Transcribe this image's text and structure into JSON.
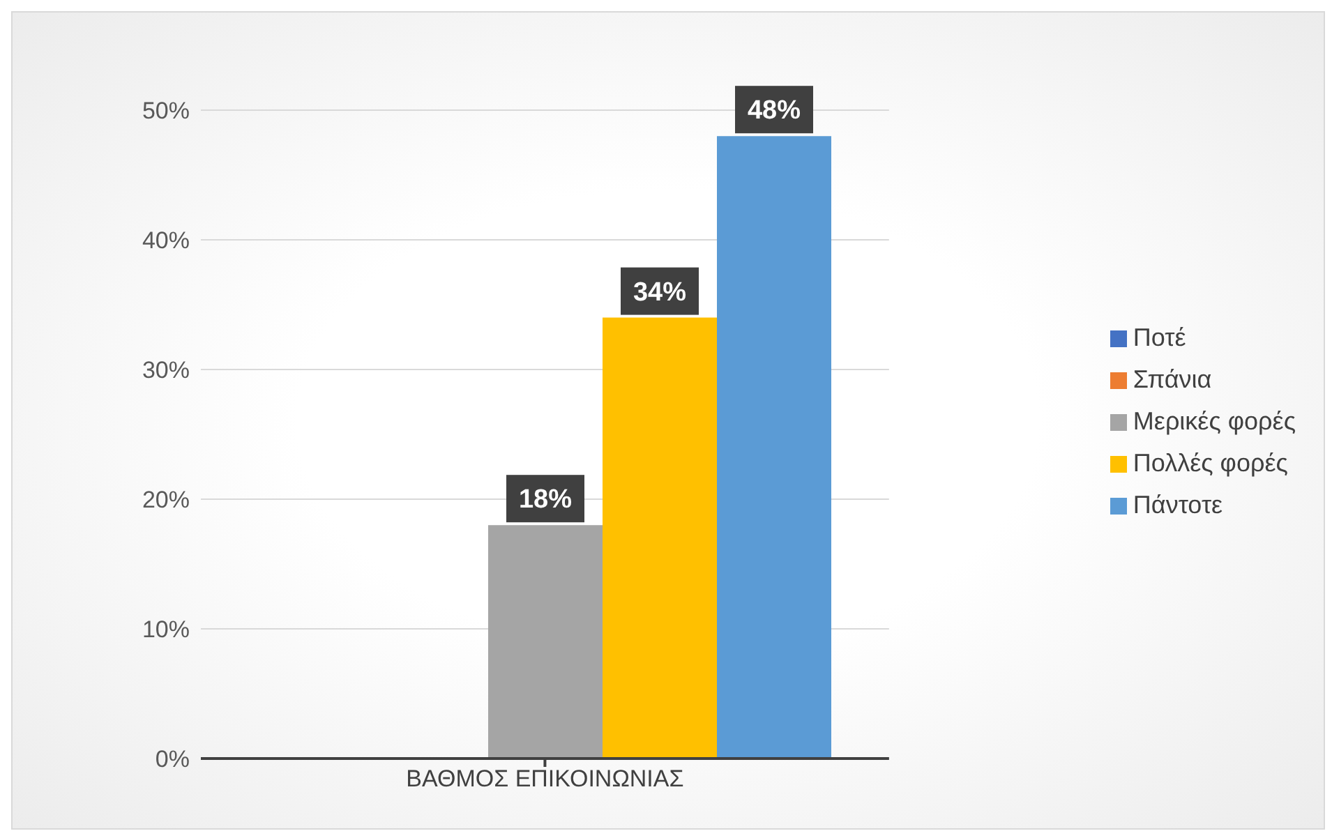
{
  "chart_data": {
    "type": "bar",
    "categories": [
      "ΒΑΘΜΟΣ ΕΠΙΚΟΙΝΩΝΙΑΣ"
    ],
    "series": [
      {
        "name": "Ποτέ",
        "color": "#4472c4",
        "values": [
          0
        ],
        "value_labels": [
          null
        ]
      },
      {
        "name": "Σπάνια",
        "color": "#ed7d31",
        "values": [
          0
        ],
        "value_labels": [
          null
        ]
      },
      {
        "name": "Μερικές φορές",
        "color": "#a5a5a5",
        "values": [
          18
        ],
        "value_labels": [
          "18%"
        ]
      },
      {
        "name": "Πολλές φορές",
        "color": "#ffc000",
        "values": [
          34
        ],
        "value_labels": [
          "34%"
        ]
      },
      {
        "name": "Πάντοτε",
        "color": "#5b9bd5",
        "values": [
          48
        ],
        "value_labels": [
          "48%"
        ]
      }
    ],
    "ylim": [
      0,
      50
    ],
    "yticks": [
      {
        "value": 0,
        "label": "0%"
      },
      {
        "value": 10,
        "label": "10%"
      },
      {
        "value": 20,
        "label": "20%"
      },
      {
        "value": 30,
        "label": "30%"
      },
      {
        "value": 40,
        "label": "40%"
      },
      {
        "value": 50,
        "label": "50%"
      }
    ],
    "grid": "y",
    "legend": "right"
  }
}
